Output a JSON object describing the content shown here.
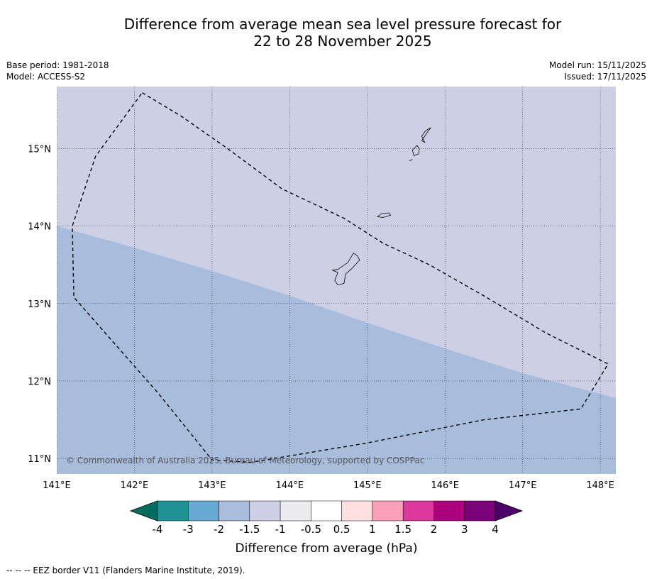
{
  "header": {
    "title_line1": "Difference from average mean sea level pressure forecast for",
    "title_line2": "22 to 28 November 2025",
    "base_period": "Base period: 1981-2018",
    "model": "Model: ACCESS-S2",
    "model_run": "Model run: 15/11/2025",
    "issued": "Issued: 17/11/2025"
  },
  "map": {
    "lon_range": [
      141.0,
      148.2
    ],
    "lat_range": [
      10.8,
      15.8
    ],
    "lon_ticks": [
      141,
      142,
      143,
      144,
      145,
      146,
      147,
      148
    ],
    "lon_tick_labels": [
      "141°E",
      "142°E",
      "143°E",
      "144°E",
      "145°E",
      "146°E",
      "147°E",
      "148°E"
    ],
    "lat_ticks": [
      11,
      12,
      13,
      14,
      15
    ],
    "lat_tick_labels": [
      "11°N",
      "12°N",
      "13°N",
      "14°N",
      "15°N"
    ],
    "grid": true,
    "regions": [
      {
        "category": "-1.5 to -1",
        "color": "#cdcfe4"
      },
      {
        "category": "-2 to -1.5",
        "color": "#a8bcdc",
        "upper_boundary": [
          [
            141.0,
            14.0
          ],
          [
            142.0,
            13.72
          ],
          [
            143.0,
            13.42
          ],
          [
            144.0,
            13.1
          ],
          [
            145.0,
            12.75
          ],
          [
            146.0,
            12.42
          ],
          [
            147.0,
            12.1
          ],
          [
            148.2,
            11.78
          ]
        ]
      }
    ],
    "eez_border": [
      [
        142.1,
        15.72
      ],
      [
        142.6,
        15.42
      ],
      [
        143.2,
        15.0
      ],
      [
        143.9,
        14.48
      ],
      [
        144.7,
        14.1
      ],
      [
        145.2,
        13.78
      ],
      [
        145.8,
        13.5
      ],
      [
        146.5,
        13.1
      ],
      [
        147.3,
        12.62
      ],
      [
        148.1,
        12.22
      ],
      [
        147.75,
        11.64
      ],
      [
        146.5,
        11.5
      ],
      [
        145.0,
        11.2
      ],
      [
        143.5,
        10.95
      ],
      [
        143.0,
        10.98
      ],
      [
        142.3,
        11.85
      ],
      [
        141.22,
        13.08
      ],
      [
        141.2,
        14.0
      ],
      [
        141.5,
        14.9
      ],
      [
        142.1,
        15.72
      ]
    ],
    "islands": [
      {
        "name": "",
        "outline": [
          [
            144.62,
            13.44
          ],
          [
            144.75,
            13.53
          ],
          [
            144.82,
            13.65
          ],
          [
            144.87,
            13.62
          ],
          [
            144.9,
            13.56
          ],
          [
            144.8,
            13.45
          ],
          [
            144.72,
            13.38
          ],
          [
            144.7,
            13.26
          ],
          [
            144.62,
            13.24
          ],
          [
            144.58,
            13.3
          ],
          [
            144.62,
            13.4
          ],
          [
            144.55,
            13.43
          ]
        ]
      },
      {
        "name": "",
        "outline": [
          [
            145.13,
            14.12
          ],
          [
            145.18,
            14.16
          ],
          [
            145.28,
            14.17
          ],
          [
            145.3,
            14.14
          ],
          [
            145.2,
            14.11
          ]
        ]
      },
      {
        "name": "",
        "outline": [
          [
            145.58,
            14.98
          ],
          [
            145.64,
            15.04
          ],
          [
            145.67,
            15.0
          ],
          [
            145.66,
            14.93
          ],
          [
            145.6,
            14.91
          ]
        ]
      },
      {
        "name": "",
        "outline": [
          [
            145.7,
            15.1
          ],
          [
            145.78,
            15.22
          ],
          [
            145.82,
            15.27
          ],
          [
            145.75,
            15.23
          ],
          [
            145.7,
            15.16
          ],
          [
            145.74,
            15.08
          ]
        ]
      },
      {
        "name": "",
        "outline": [
          [
            145.54,
            14.84
          ],
          [
            145.58,
            14.86
          ]
        ]
      }
    ],
    "copyright": "© Commonwealth of Australia 2025, Bureau of Meteorology, supported by COSPPac"
  },
  "colorbar": {
    "title": "Difference from average (hPa)",
    "boundaries": [
      "-4",
      "-3",
      "-2",
      "-1.5",
      "-1",
      "-0.5",
      "0.5",
      "1",
      "1.5",
      "2",
      "3",
      "4"
    ],
    "under_color": "#006d5f",
    "over_color": "#4d006a",
    "colors": [
      "#1f9295",
      "#68a9d3",
      "#a8bcdc",
      "#cdcfe4",
      "#ecebef",
      "#ffffff",
      "#ffdfe0",
      "#f99fb9",
      "#dc389b",
      "#ae017e",
      "#7a0177"
    ]
  },
  "footnote": "--  --  -- EEZ border V11 (Flanders Marine Institute, 2019)."
}
